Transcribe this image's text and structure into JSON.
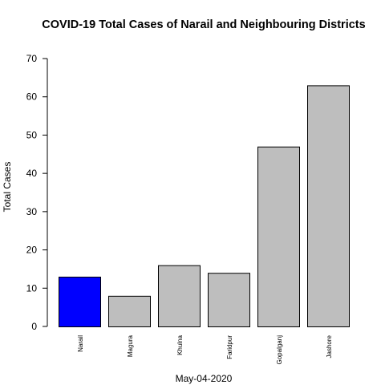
{
  "chart_data": {
    "type": "bar",
    "title": "COVID-19 Total Cases of Narail and Neighbouring Districts",
    "xlabel": "May-04-2020",
    "ylabel": "Total Cases",
    "categories": [
      "Narail",
      "Magura",
      "Khulna",
      "Faridpur",
      "Gopalganj",
      "Jashore"
    ],
    "values": [
      13,
      8,
      16,
      14,
      47,
      63
    ],
    "ylim": [
      0,
      70
    ],
    "yticks": [
      0,
      10,
      20,
      30,
      40,
      50,
      60,
      70
    ],
    "grid": false,
    "colors": {
      "highlight": "#0000ff",
      "default": "#bebebe",
      "outline": "#000000"
    },
    "highlight_category": "Narail"
  }
}
